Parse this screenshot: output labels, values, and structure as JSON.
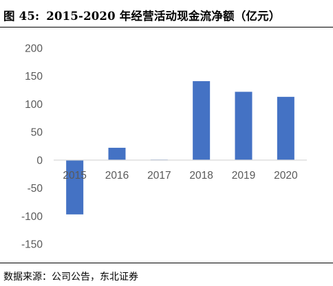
{
  "figure": {
    "label": "图 45:",
    "title": "2015-2020 年经营活动现金流净额（亿元）"
  },
  "source": "数据来源：公司公告，东北证券",
  "chart_data": {
    "type": "bar",
    "title": "2015-2020 年经营活动现金流净额（亿元）",
    "xlabel": "",
    "ylabel": "",
    "categories": [
      "2015",
      "2016",
      "2017",
      "2018",
      "2019",
      "2020"
    ],
    "series": [
      {
        "values": [
          -97,
          22,
          1,
          141,
          122,
          113
        ]
      }
    ],
    "ylim": [
      -150,
      200
    ],
    "yticks": [
      200,
      150,
      100,
      50,
      0,
      -50,
      -100,
      -150
    ],
    "ytick_labels": [
      "200",
      "150",
      "100",
      "50",
      "0",
      "-50",
      "-100",
      "-150"
    ],
    "grid": false,
    "legend": "none",
    "colors": {
      "bar": "#4472C4",
      "axis": "#D9D9D9",
      "tick_text": "#595959"
    }
  }
}
